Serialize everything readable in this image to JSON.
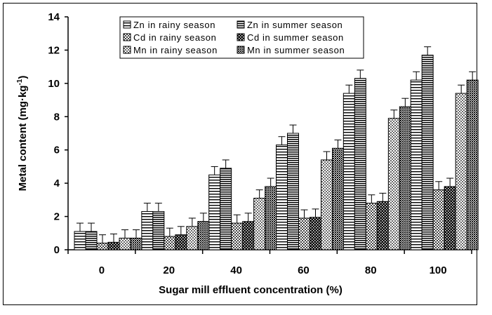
{
  "chart_data": {
    "type": "bar",
    "xlabel": "Sugar mill effluent concentration (%)",
    "ylabel": "Metal content (mg·kg",
    "ylabel_sup": "-1",
    "ylabel_close": ")",
    "categories": [
      "0",
      "20",
      "40",
      "60",
      "80",
      "100"
    ],
    "ylim": [
      0,
      14
    ],
    "yticks": [
      0,
      2,
      4,
      6,
      8,
      10,
      12,
      14
    ],
    "grid": false,
    "legend_position": "top",
    "series": [
      {
        "name": "Zn in rainy season",
        "values": [
          1.1,
          2.3,
          4.5,
          6.3,
          9.4,
          10.2
        ],
        "errors": [
          0.5,
          0.5,
          0.5,
          0.5,
          0.5,
          0.5
        ]
      },
      {
        "name": "Zn in summer season",
        "values": [
          1.1,
          2.3,
          4.9,
          7.0,
          10.3,
          11.7
        ],
        "errors": [
          0.5,
          0.5,
          0.5,
          0.5,
          0.5,
          0.5
        ]
      },
      {
        "name": "Cd in rainy season",
        "values": [
          0.4,
          0.8,
          1.6,
          1.9,
          2.8,
          3.6
        ],
        "errors": [
          0.5,
          0.5,
          0.5,
          0.5,
          0.5,
          0.5
        ]
      },
      {
        "name": "Cd in summer season",
        "values": [
          0.45,
          0.9,
          1.7,
          1.95,
          2.9,
          3.8
        ],
        "errors": [
          0.5,
          0.5,
          0.5,
          0.5,
          0.5,
          0.5
        ]
      },
      {
        "name": "Mn in rainy season",
        "values": [
          0.7,
          1.4,
          3.1,
          5.4,
          7.9,
          9.4
        ],
        "errors": [
          0.5,
          0.5,
          0.5,
          0.5,
          0.5,
          0.5
        ]
      },
      {
        "name": "Mn in summer season",
        "values": [
          0.7,
          1.7,
          3.8,
          6.1,
          8.6,
          10.2
        ],
        "errors": [
          0.5,
          0.5,
          0.5,
          0.5,
          0.5,
          0.5
        ]
      }
    ]
  }
}
